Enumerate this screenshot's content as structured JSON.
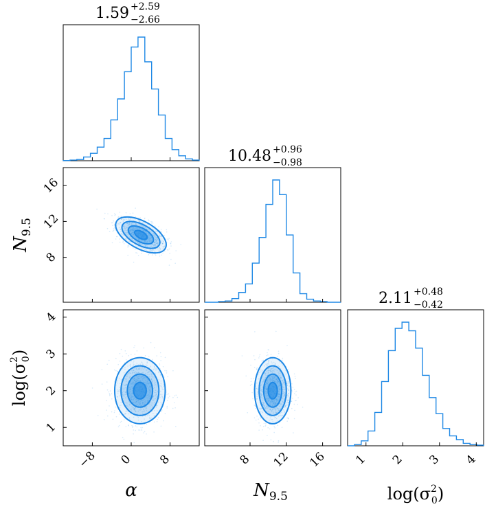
{
  "chart_data": {
    "type": "corner",
    "color": "#1e88e5",
    "parameters": [
      {
        "name": "alpha",
        "label": "α",
        "range": [
          -14,
          14
        ],
        "ticks": [
          -8,
          0,
          8
        ],
        "tick_labels": [
          "−8",
          "0",
          "8"
        ],
        "title": {
          "median": "1.59",
          "plus": "+2.59",
          "minus": "−2.66"
        }
      },
      {
        "name": "N_9.5",
        "label_main": "N",
        "label_sub": "9.5",
        "range": [
          3,
          18
        ],
        "ticks": [
          8,
          12,
          16
        ],
        "tick_labels": [
          "8",
          "12",
          "16"
        ],
        "title": {
          "median": "10.48",
          "plus": "+0.96",
          "minus": "−0.98"
        }
      },
      {
        "name": "log_sigma0_sq",
        "label_main": "log(σ",
        "label_sup": "2",
        "label_sub": "0",
        "label_end": ")",
        "range": [
          0.5,
          4.2
        ],
        "ticks": [
          1,
          2,
          3,
          4
        ],
        "tick_labels": [
          "1",
          "2",
          "3",
          "4"
        ],
        "title": {
          "median": "2.11",
          "plus": "+0.48",
          "minus": "−0.42"
        }
      }
    ],
    "histograms": [
      {
        "param": "alpha",
        "bin_edges": [
          -14,
          -12.6,
          -11.2,
          -9.8,
          -8.4,
          -7,
          -5.6,
          -4.2,
          -2.8,
          -1.4,
          0,
          1.4,
          2.8,
          4.2,
          5.6,
          7,
          8.4,
          9.8,
          11.2,
          12.6,
          14
        ],
        "counts": [
          0.2,
          0.5,
          1,
          3,
          6,
          11,
          18,
          33,
          50,
          72,
          92,
          100,
          80,
          58,
          37,
          18,
          9,
          4,
          1.5,
          0.5
        ]
      },
      {
        "param": "N_9.5",
        "bin_edges": [
          3,
          3.75,
          4.5,
          5.25,
          6,
          6.75,
          7.5,
          8.25,
          9,
          9.75,
          10.5,
          11.25,
          12,
          12.75,
          13.5,
          14.25,
          15,
          15.75,
          16.5,
          17.25,
          18
        ],
        "counts": [
          0,
          0,
          0.5,
          1,
          3,
          8,
          15,
          32,
          53,
          80,
          100,
          88,
          55,
          24,
          7,
          2.5,
          1,
          0.5,
          0,
          0
        ]
      },
      {
        "param": "log_sigma0_sq",
        "bin_edges": [
          0.5,
          0.685,
          0.87,
          1.055,
          1.24,
          1.425,
          1.61,
          1.795,
          1.98,
          2.165,
          2.35,
          2.535,
          2.72,
          2.905,
          3.09,
          3.275,
          3.46,
          3.645,
          3.83,
          4.015,
          4.2
        ],
        "counts": [
          0,
          1,
          4,
          12,
          27,
          52,
          77,
          95,
          100,
          93,
          79,
          57,
          39,
          26,
          14,
          8,
          5,
          2,
          1,
          0.5
        ]
      }
    ],
    "contours": [
      {
        "x": "alpha",
        "y": "N_9.5",
        "center": [
          2,
          10.5
        ],
        "sd": [
          2.6,
          1.0
        ],
        "correlation": -0.55,
        "levels_sigma": [
          0.5,
          1,
          1.5,
          2
        ]
      },
      {
        "x": "alpha",
        "y": "log_sigma0_sq",
        "center": [
          1.8,
          2.0
        ],
        "sd": [
          2.6,
          0.45
        ],
        "correlation": 0,
        "levels_sigma": [
          0.5,
          1,
          1.5,
          2
        ]
      },
      {
        "x": "N_9.5",
        "y": "log_sigma0_sq",
        "center": [
          10.5,
          2.0
        ],
        "sd": [
          1.0,
          0.45
        ],
        "correlation": 0,
        "levels_sigma": [
          0.5,
          1,
          1.5,
          2
        ]
      }
    ]
  }
}
